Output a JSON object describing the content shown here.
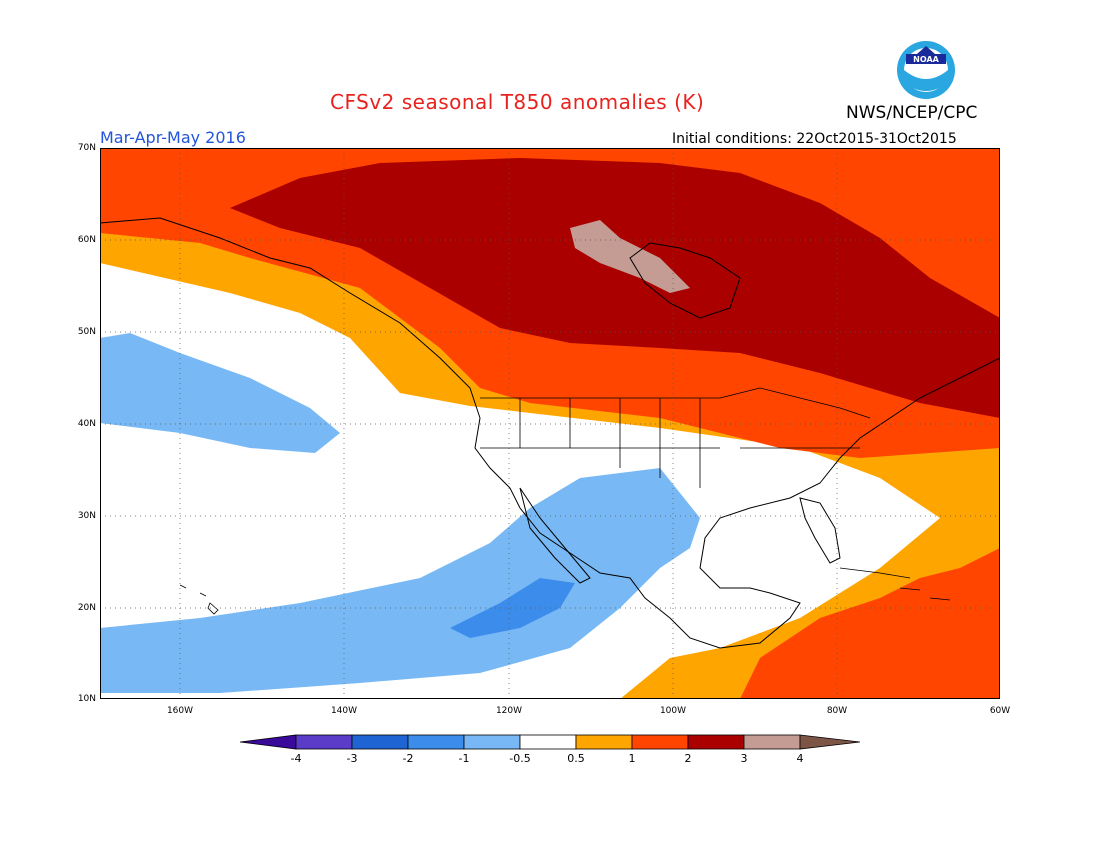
{
  "header": {
    "title": "CFSv2 seasonal T850 anomalies (K)",
    "title_color": "#e8231f",
    "agency": "NWS/NCEP/CPC",
    "period": "Mar-Apr-May 2016",
    "period_color": "#2255dd",
    "initial_conditions": "Initial conditions: 22Oct2015-31Oct2015",
    "logo_text": "NOAA"
  },
  "axes": {
    "lat_labels": [
      "70N",
      "60N",
      "50N",
      "40N",
      "30N",
      "20N",
      "10N"
    ],
    "lon_labels": [
      "160W",
      "140W",
      "120W",
      "100W",
      "80W",
      "60W"
    ]
  },
  "colorbar": {
    "labels": [
      "-4",
      "-3",
      "-2",
      "-1",
      "-0.5",
      "0.5",
      "1",
      "2",
      "3",
      "4"
    ],
    "colors": [
      "#3a0a9a",
      "#5a3cc8",
      "#1e64d2",
      "#3c8ceb",
      "#78b9f5",
      "#ffffff",
      "#ffa500",
      "#ff4500",
      "#aa0000",
      "#c49c94",
      "#7d5546"
    ]
  },
  "chart_data": {
    "type": "heatmap",
    "title": "CFSv2 seasonal T850 anomalies (K)",
    "xlim": [
      "170W",
      "60W"
    ],
    "ylim": [
      "10N",
      "70N"
    ],
    "levels": [
      -4,
      -3,
      -2,
      -1,
      -0.5,
      0.5,
      1,
      2,
      3,
      4
    ],
    "grid": true
  }
}
